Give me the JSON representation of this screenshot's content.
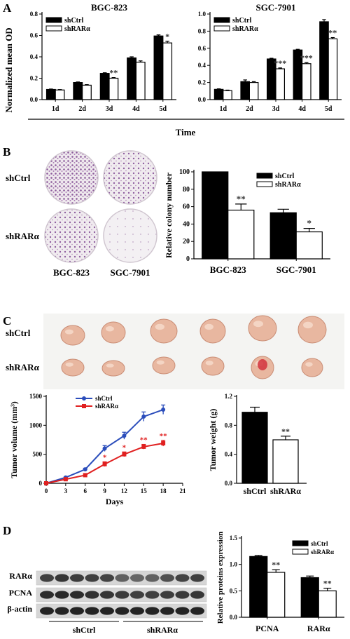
{
  "panel_letters": [
    "A",
    "B",
    "C",
    "D"
  ],
  "panelA": {
    "ylabel": "Normalized mean OD",
    "xlabel": "Time",
    "legend": [
      "shCtrl",
      "shRARα"
    ],
    "colors": {
      "ctrl": "#000000",
      "kd": "#ffffff"
    }
  },
  "panelB": {
    "row_labels": [
      "shCtrl",
      "shRARα"
    ],
    "col_labels": [
      "BGC-823",
      "SGC-7901"
    ],
    "plate_colors": {
      "dense": "#9a6aa6",
      "plate": "#efe9ee"
    }
  },
  "panelC": {
    "row_labels": [
      "shCtrl",
      "shRARα"
    ],
    "tumor_color": "#e8b7a0",
    "line_colors": {
      "ctrl": "#2b4dbb",
      "kd": "#e02020"
    }
  },
  "panelD": {
    "blot_labels": [
      "RARα",
      "PCNA",
      "β-actin"
    ],
    "group_labels": [
      "shCtrl",
      "shRARα"
    ]
  },
  "chart_data": [
    {
      "type": "bar",
      "title": "BGC-823",
      "ylabel": "Normalized mean OD",
      "xlabel": "Time",
      "categories": [
        "1d",
        "2d",
        "3d",
        "4d",
        "5d"
      ],
      "ylim": [
        0,
        0.8
      ],
      "yticks": [
        "0.0",
        "0.2",
        "0.4",
        "0.6",
        "0.8"
      ],
      "series": [
        {
          "name": "shCtrl",
          "values": [
            0.095,
            0.16,
            0.245,
            0.39,
            0.595
          ],
          "errors": [
            0.004,
            0.005,
            0.006,
            0.01,
            0.01
          ]
        },
        {
          "name": "shRARα",
          "values": [
            0.09,
            0.135,
            0.2,
            0.35,
            0.53
          ],
          "errors": [
            0.004,
            0.005,
            0.006,
            0.012,
            0.015
          ]
        }
      ],
      "annotations": [
        "",
        "",
        "**",
        "",
        "*"
      ],
      "legend": "top-left"
    },
    {
      "type": "bar",
      "title": "SGC-7901",
      "categories": [
        "1d",
        "2d",
        "3d",
        "4d",
        "5d"
      ],
      "ylim": [
        0,
        1.0
      ],
      "yticks": [
        "0.0",
        "0.2",
        "0.4",
        "0.6",
        "0.8",
        "1.0"
      ],
      "series": [
        {
          "name": "shCtrl",
          "values": [
            0.12,
            0.21,
            0.475,
            0.58,
            0.91
          ],
          "errors": [
            0.006,
            0.02,
            0.008,
            0.008,
            0.025
          ]
        },
        {
          "name": "shRARα",
          "values": [
            0.105,
            0.2,
            0.36,
            0.42,
            0.71
          ],
          "errors": [
            0.006,
            0.01,
            0.01,
            0.012,
            0.015
          ]
        }
      ],
      "annotations": [
        "",
        "",
        "***",
        "***",
        "**"
      ],
      "legend": "top-left"
    },
    {
      "type": "bar",
      "ylabel": "Relative colony number",
      "categories": [
        "BGC-823",
        "SGC-7901"
      ],
      "ylim": [
        0,
        100
      ],
      "yticks": [
        "0",
        "20",
        "40",
        "60",
        "80",
        "100"
      ],
      "series": [
        {
          "name": "shCtrl",
          "values": [
            100,
            53
          ],
          "errors": [
            0,
            4
          ]
        },
        {
          "name": "shRARα",
          "values": [
            56,
            31
          ],
          "errors": [
            7,
            4
          ]
        }
      ],
      "annotations": [
        "**",
        "*"
      ],
      "legend": "top-right"
    },
    {
      "type": "line",
      "ylabel": "Tumor volume (mm³)",
      "xlabel": "Days",
      "x": [
        0,
        3,
        6,
        9,
        12,
        15,
        18
      ],
      "xticks": [
        "0",
        "3",
        "6",
        "9",
        "12",
        "15",
        "18",
        "21"
      ],
      "xlim": [
        0,
        21
      ],
      "ylim": [
        0,
        1500
      ],
      "yticks": [
        "0",
        "500",
        "1000",
        "1500"
      ],
      "series": [
        {
          "name": "shCtrl",
          "values": [
            0,
            100,
            240,
            600,
            820,
            1150,
            1270
          ],
          "errors": [
            0,
            10,
            20,
            50,
            60,
            80,
            80
          ]
        },
        {
          "name": "shRARα",
          "values": [
            0,
            70,
            140,
            330,
            500,
            630,
            690
          ],
          "errors": [
            0,
            10,
            15,
            40,
            40,
            40,
            50
          ]
        }
      ],
      "annotations": [
        "",
        "",
        "",
        "*",
        "*",
        "**",
        "**"
      ],
      "legend": "top-left"
    },
    {
      "type": "bar",
      "ylabel": "Tumor weight (g)",
      "categories": [
        "shCtrl",
        "shRARα"
      ],
      "ylim": [
        0,
        1.2
      ],
      "yticks": [
        "0.0",
        "0.4",
        "0.8",
        "1.2"
      ],
      "series": [
        {
          "name": "Tumor weight",
          "values": [
            0.98,
            0.6
          ],
          "errors": [
            0.07,
            0.05
          ]
        }
      ],
      "annotations": [
        "",
        "**"
      ]
    },
    {
      "type": "bar",
      "ylabel": "Relative proteins expression",
      "categories": [
        "PCNA",
        "RARα"
      ],
      "ylim": [
        0,
        1.5
      ],
      "yticks": [
        "0.0",
        "0.5",
        "1.0",
        "1.5"
      ],
      "series": [
        {
          "name": "shCtrl",
          "values": [
            1.15,
            0.75
          ],
          "errors": [
            0.02,
            0.03
          ]
        },
        {
          "name": "shRARα",
          "values": [
            0.85,
            0.5
          ],
          "errors": [
            0.05,
            0.05
          ]
        }
      ],
      "annotations": [
        "**",
        "**"
      ],
      "legend": "top-right"
    }
  ]
}
